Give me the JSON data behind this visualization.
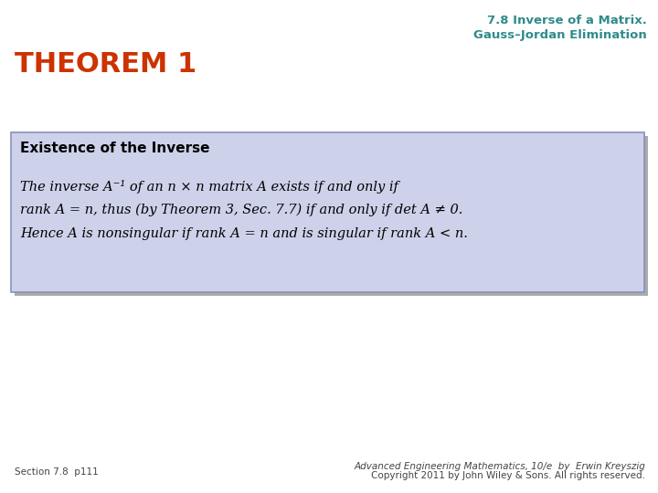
{
  "bg_color": "#ffffff",
  "header_line1": "7.8 Inverse of a Matrix.",
  "header_line2": "Gauss–Jordan Elimination",
  "header_color": "#2e8b8b",
  "theorem_label": "THEOREM 1",
  "theorem_color": "#cc3300",
  "box_bg_color": "#cdd2ea",
  "box_border_color": "#8890bb",
  "box_shadow_color": "#aaaaaa",
  "box_title": "Existence of the Inverse",
  "body_line1": "The inverse A⁻¹ of an n × n matrix A exists if and only if",
  "body_line2": "rank A = n, thus (by Theorem 3, Sec. 7.7) if and only if det A ≠ 0.",
  "body_line3": "Hence A is nonsingular if rank A = n and is singular if rank A < n.",
  "footer_left": "Section 7.8  p111",
  "footer_right_line1": "Advanced Engineering Mathematics, 10/e  by  Erwin Kreyszig",
  "footer_right_line2": "Copyright 2011 by John Wiley & Sons. All rights reserved.",
  "footer_color": "#444444"
}
